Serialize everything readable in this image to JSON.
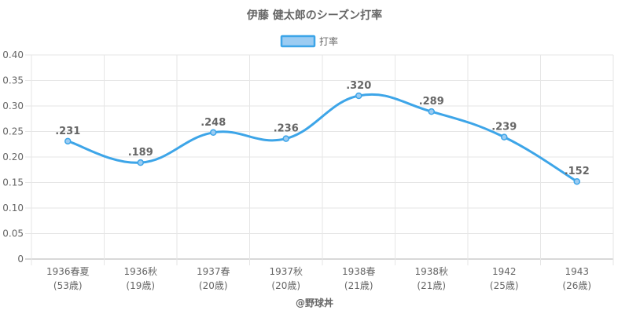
{
  "chart_data": {
    "type": "line",
    "title": "伊藤 健太郎のシーズン打率",
    "categories": [
      [
        "1936春夏",
        "(53歳)"
      ],
      [
        "1936秋",
        "(19歳)"
      ],
      [
        "1937春",
        "(20歳)"
      ],
      [
        "1937秋",
        "(20歳)"
      ],
      [
        "1938春",
        "(21歳)"
      ],
      [
        "1938秋",
        "(21歳)"
      ],
      [
        "1942",
        "(25歳)"
      ],
      [
        "1943",
        "(26歳)"
      ]
    ],
    "series": [
      {
        "name": "打率",
        "values": [
          0.231,
          0.189,
          0.248,
          0.236,
          0.32,
          0.289,
          0.239,
          0.152
        ],
        "data_labels": [
          ".231",
          ".189",
          ".248",
          ".236",
          ".320",
          ".289",
          ".239",
          ".152"
        ],
        "color": "#3da5e8",
        "fill": "#9cccf2"
      }
    ],
    "ylim": [
      0,
      0.4
    ],
    "yticks": [
      "0",
      "0.05",
      "0.10",
      "0.15",
      "0.20",
      "0.25",
      "0.30",
      "0.35",
      "0.40"
    ],
    "grid": true,
    "legend_position": "top-center"
  },
  "credit": "@野球丼"
}
